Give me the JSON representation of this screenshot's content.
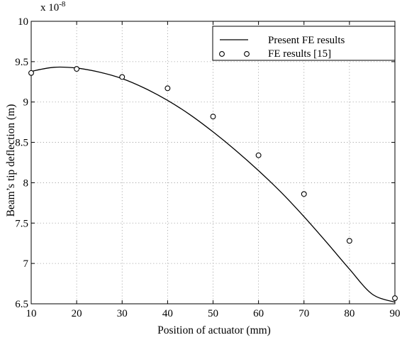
{
  "chart_data": {
    "type": "line",
    "title": "",
    "xlabel": "Position of actuator (mm)",
    "ylabel": "Beam’s tip deflection (m)",
    "y_multiplier_label": "x 10",
    "y_multiplier_exponent": "-8",
    "xlim": [
      10,
      90
    ],
    "ylim": [
      6.5,
      10
    ],
    "x_ticks": [
      10,
      20,
      30,
      40,
      50,
      60,
      70,
      80,
      90
    ],
    "y_ticks": [
      6.5,
      7,
      7.5,
      8,
      8.5,
      9,
      9.5,
      10
    ],
    "x_tick_labels": [
      "10",
      "20",
      "30",
      "40",
      "50",
      "60",
      "70",
      "80",
      "90"
    ],
    "y_tick_labels": [
      "6.5",
      "7",
      "7.5",
      "8",
      "8.5",
      "9",
      "9.5",
      "10"
    ],
    "grid": true,
    "legend_position": "top-right",
    "series": [
      {
        "name": "Present FE results",
        "style": "solid-line",
        "x": [
          10,
          15,
          20,
          25,
          30,
          35,
          40,
          45,
          50,
          55,
          60,
          65,
          70,
          75,
          80,
          85,
          90
        ],
        "y": [
          9.38,
          9.43,
          9.42,
          9.37,
          9.29,
          9.17,
          9.02,
          8.84,
          8.63,
          8.4,
          8.15,
          7.88,
          7.58,
          7.26,
          6.93,
          6.62,
          6.52
        ]
      },
      {
        "name": "FE results [15]",
        "style": "circle-markers",
        "x": [
          10,
          20,
          30,
          40,
          50,
          60,
          70,
          80,
          90
        ],
        "y": [
          9.36,
          9.41,
          9.31,
          9.17,
          8.82,
          8.34,
          7.86,
          7.28,
          6.57
        ]
      }
    ]
  }
}
